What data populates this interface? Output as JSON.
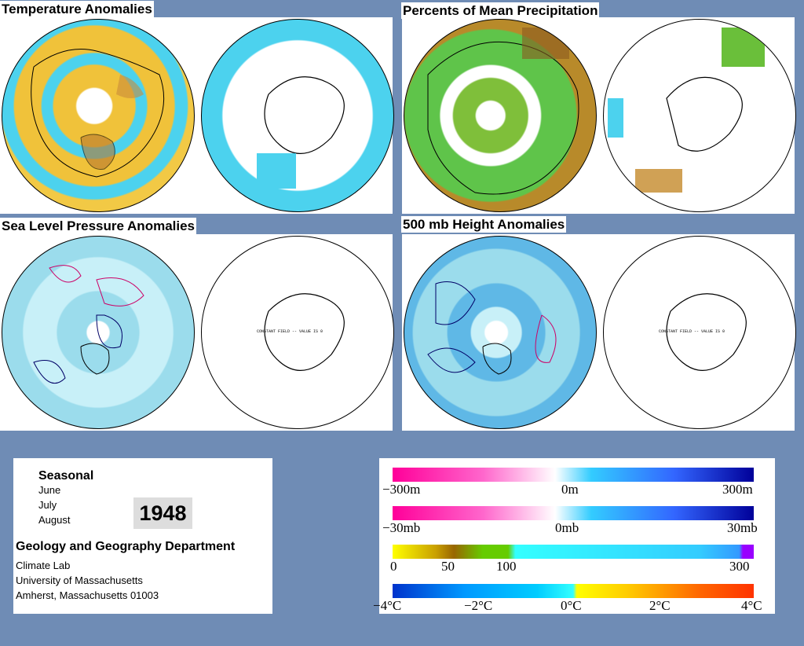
{
  "panels": {
    "temperature": {
      "title": "Temperature Anomalies"
    },
    "precipitation": {
      "title": "Percents of Mean Precipitation"
    },
    "slp": {
      "title": "Sea Level Pressure Anomalies",
      "constant_note": "CONSTANT FIELD -- VALUE IS 0"
    },
    "height500": {
      "title": "500 mb Height Anomalies",
      "constant_note": "CONSTANT FIELD -- VALUE IS 0"
    }
  },
  "info": {
    "period": "Seasonal",
    "months": [
      "June",
      "July",
      "August"
    ],
    "year": "1948",
    "department": "Geology and Geography Department",
    "address": [
      "Climate Lab",
      "University of Massachusetts",
      "Amherst, Massachusetts 01003"
    ]
  },
  "legend": {
    "height": {
      "ticks": [
        "−300m",
        "0m",
        "300m"
      ],
      "colors": [
        "#ff0099",
        "#ffffff",
        "#33ccff",
        "#000099"
      ]
    },
    "pressure": {
      "ticks": [
        "−30mb",
        "0mb",
        "30mb"
      ],
      "colors": [
        "#ff0099",
        "#ffffff",
        "#33ccff",
        "#000099"
      ]
    },
    "precip": {
      "ticks": [
        "0",
        "50",
        "100",
        "300"
      ],
      "colors": [
        "#ffff00",
        "#996600",
        "#66cc00",
        "#33ffff",
        "#0099ff",
        "#9900ff"
      ]
    },
    "temp": {
      "ticks": [
        "−4°C",
        "−2°C",
        "0°C",
        "2°C",
        "4°C"
      ],
      "colors": [
        "#0033cc",
        "#00ccff",
        "#ffff00",
        "#ff3300"
      ]
    }
  }
}
